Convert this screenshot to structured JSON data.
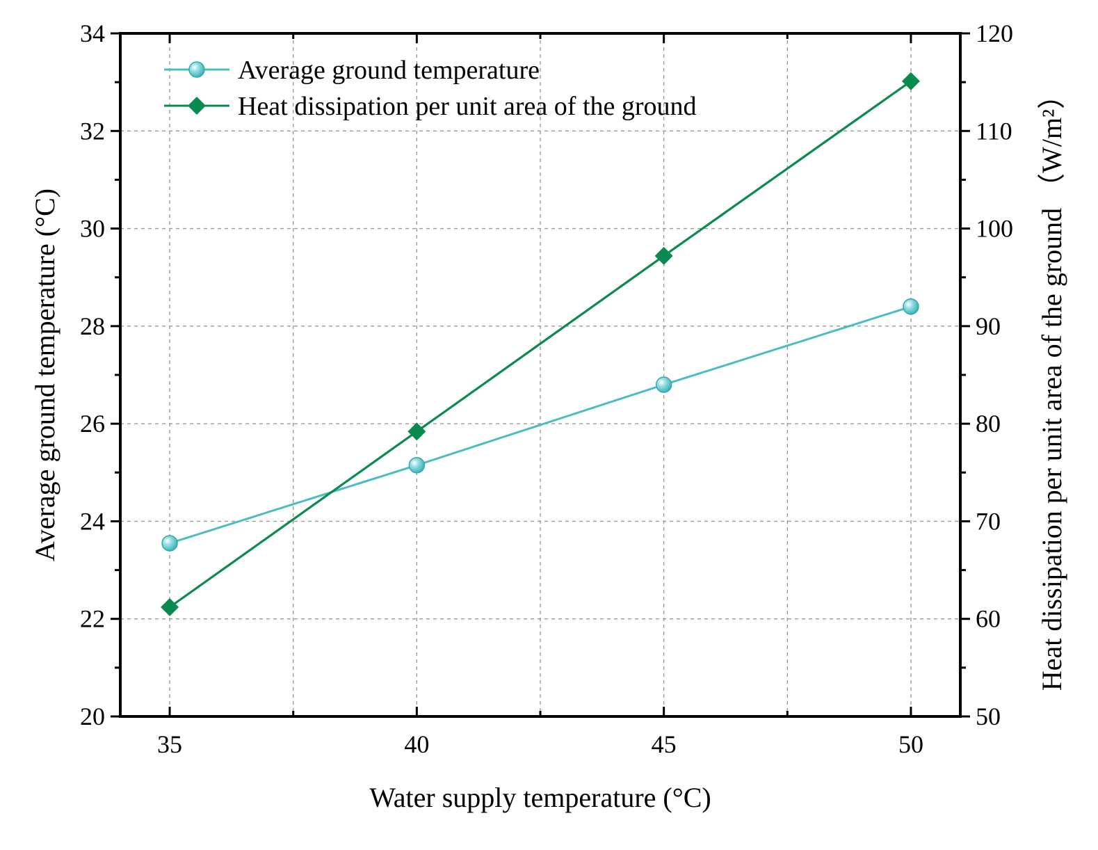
{
  "chart_data": {
    "type": "line",
    "title": "",
    "xlabel": "Water supply temperature (°C)",
    "ylabel": "Average ground temperature (°C)",
    "y2label": "Heat dissipation per unit area of the ground （W/m²）",
    "x": [
      35,
      40,
      45,
      50
    ],
    "xlim": [
      34,
      51
    ],
    "ylim": [
      20,
      34
    ],
    "y2lim": [
      50,
      120
    ],
    "x_ticks": [
      "35",
      "40",
      "45",
      "50"
    ],
    "y_ticks": [
      "20",
      "22",
      "24",
      "26",
      "28",
      "30",
      "32",
      "34"
    ],
    "y2_ticks": [
      "50",
      "60",
      "70",
      "80",
      "90",
      "100",
      "110",
      "120"
    ],
    "grid": true,
    "legend_position": "top-left",
    "series": [
      {
        "name": "Average ground temperature",
        "axis": "left",
        "marker": "circle",
        "color": "#4bbcc0",
        "values": [
          23.55,
          25.15,
          26.8,
          28.4
        ]
      },
      {
        "name": "Heat dissipation per unit area of the ground",
        "axis": "right",
        "marker": "diamond",
        "color": "#0a8a4e",
        "values": [
          61.2,
          79.2,
          97.2,
          115.1
        ]
      }
    ]
  }
}
